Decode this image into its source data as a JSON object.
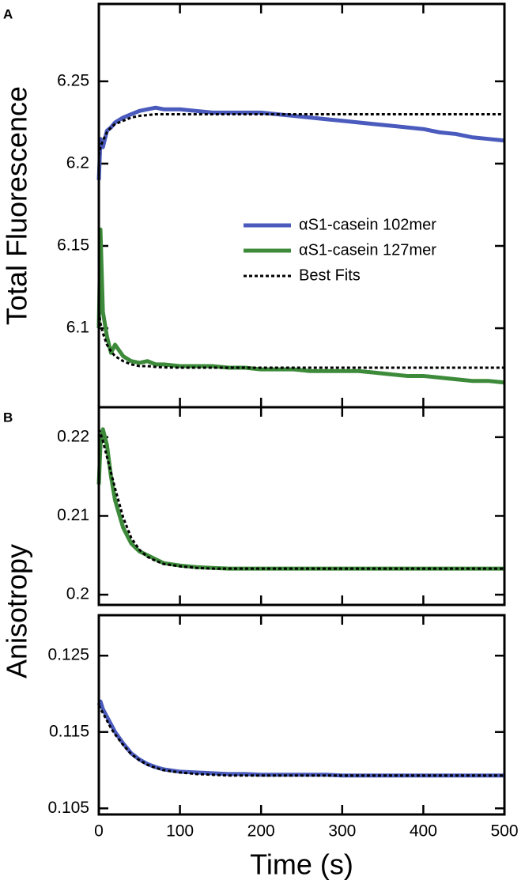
{
  "chart_data": [
    {
      "type": "line",
      "panel_label": "A",
      "ylabel": "Total Fluorescence",
      "x": [
        0,
        2,
        5,
        10,
        15,
        20,
        30,
        40,
        50,
        60,
        70,
        80,
        100,
        120,
        140,
        160,
        180,
        200,
        220,
        240,
        260,
        280,
        300,
        320,
        340,
        360,
        380,
        400,
        420,
        440,
        460,
        480,
        500
      ],
      "xlim": [
        0,
        500
      ],
      "xticks": [
        0,
        100,
        200,
        300,
        400,
        500
      ],
      "ylim": [
        6.052,
        6.297
      ],
      "yticks": [
        6.1,
        6.15,
        6.2,
        6.25
      ],
      "legend": true,
      "series": [
        {
          "name": "αS1-casein 102mer",
          "color": "#4a5bbd",
          "values": [
            6.19,
            6.215,
            6.21,
            6.22,
            6.222,
            6.225,
            6.228,
            6.23,
            6.232,
            6.233,
            6.234,
            6.233,
            6.233,
            6.232,
            6.231,
            6.231,
            6.231,
            6.231,
            6.23,
            6.229,
            6.228,
            6.227,
            6.226,
            6.225,
            6.224,
            6.223,
            6.222,
            6.221,
            6.219,
            6.218,
            6.216,
            6.215,
            6.214
          ]
        },
        {
          "name": "αS1-casein 127mer",
          "color": "#3d8b3a",
          "values": [
            6.1,
            6.16,
            6.11,
            6.095,
            6.085,
            6.09,
            6.083,
            6.08,
            6.079,
            6.08,
            6.078,
            6.078,
            6.077,
            6.077,
            6.077,
            6.076,
            6.076,
            6.075,
            6.075,
            6.075,
            6.074,
            6.074,
            6.074,
            6.074,
            6.073,
            6.072,
            6.071,
            6.071,
            6.07,
            6.069,
            6.068,
            6.068,
            6.067
          ]
        },
        {
          "name": "Best Fits",
          "color": "#000000",
          "dashed": true,
          "values": [
            6.205,
            6.21,
            6.214,
            6.219,
            6.222,
            6.224,
            6.226,
            6.228,
            6.229,
            6.2295,
            6.23,
            6.23,
            6.23,
            6.23,
            6.23,
            6.23,
            6.23,
            6.23,
            6.23,
            6.23,
            6.23,
            6.23,
            6.23,
            6.23,
            6.23,
            6.23,
            6.23,
            6.23,
            6.23,
            6.23,
            6.23,
            6.23,
            6.23
          ]
        },
        {
          "color": "#000000",
          "dashed": true,
          "values": [
            6.11,
            6.103,
            6.097,
            6.09,
            6.086,
            6.083,
            6.08,
            6.078,
            6.077,
            6.077,
            6.0765,
            6.0762,
            6.076,
            6.076,
            6.076,
            6.076,
            6.076,
            6.076,
            6.076,
            6.076,
            6.076,
            6.076,
            6.076,
            6.076,
            6.076,
            6.076,
            6.076,
            6.076,
            6.076,
            6.076,
            6.076,
            6.076,
            6.076
          ]
        }
      ]
    },
    {
      "type": "line",
      "panel_label": "B",
      "ylabel": "Anisotropy",
      "x": [
        0,
        2,
        5,
        10,
        15,
        20,
        30,
        40,
        50,
        60,
        70,
        80,
        100,
        120,
        140,
        160,
        180,
        200,
        220,
        240,
        260,
        280,
        300,
        320,
        340,
        360,
        380,
        400,
        420,
        440,
        460,
        480,
        500
      ],
      "xlim": [
        0,
        500
      ],
      "xticks": [
        0,
        100,
        200,
        300,
        400,
        500
      ],
      "ylim": [
        0.1987,
        0.2238
      ],
      "yticks": [
        0.2,
        0.21,
        0.22
      ],
      "series": [
        {
          "color": "#3d8b3a",
          "values": [
            0.214,
            0.219,
            0.221,
            0.219,
            0.215,
            0.212,
            0.2085,
            0.2065,
            0.2055,
            0.205,
            0.2045,
            0.204,
            0.2037,
            0.2035,
            0.2034,
            0.2033,
            0.2033,
            0.2033,
            0.2033,
            0.2033,
            0.2033,
            0.2033,
            0.2033,
            0.2033,
            0.2033,
            0.2033,
            0.2033,
            0.2033,
            0.2033,
            0.2033,
            0.2033,
            0.2033,
            0.2033
          ]
        },
        {
          "color": "#000000",
          "dashed": true,
          "values": [
            0.221,
            0.2205,
            0.2195,
            0.2175,
            0.2155,
            0.2135,
            0.2098,
            0.2072,
            0.2057,
            0.2048,
            0.2043,
            0.2039,
            0.2036,
            0.2034,
            0.2033,
            0.2033,
            0.2033,
            0.2033,
            0.2033,
            0.2033,
            0.2033,
            0.2033,
            0.2033,
            0.2033,
            0.2033,
            0.2033,
            0.2033,
            0.2033,
            0.2033,
            0.2033,
            0.2033,
            0.2033,
            0.2033
          ]
        }
      ]
    },
    {
      "type": "line",
      "xlabel": "Time (s)",
      "show_xtick_labels": true,
      "x": [
        0,
        2,
        5,
        10,
        15,
        20,
        30,
        40,
        50,
        60,
        70,
        80,
        100,
        120,
        140,
        160,
        180,
        200,
        220,
        240,
        260,
        280,
        300,
        320,
        340,
        360,
        380,
        400,
        420,
        440,
        460,
        480,
        500
      ],
      "xlim": [
        0,
        500
      ],
      "xticks": [
        0,
        100,
        200,
        300,
        400,
        500
      ],
      "ylim": [
        0.1042,
        0.1303
      ],
      "yticks": [
        0.105,
        0.115,
        0.125
      ],
      "series": [
        {
          "color": "#4a5bbd",
          "values": [
            0.1185,
            0.119,
            0.118,
            0.117,
            0.116,
            0.115,
            0.1135,
            0.1122,
            0.1114,
            0.1108,
            0.1104,
            0.1101,
            0.1098,
            0.1097,
            0.1096,
            0.1095,
            0.1095,
            0.1094,
            0.1094,
            0.1094,
            0.1094,
            0.1094,
            0.1093,
            0.1093,
            0.1093,
            0.1093,
            0.1093,
            0.1093,
            0.1093,
            0.1093,
            0.1093,
            0.1093,
            0.1093
          ]
        },
        {
          "color": "#000000",
          "dashed": true,
          "values": [
            0.1185,
            0.118,
            0.1175,
            0.1165,
            0.1155,
            0.1147,
            0.1133,
            0.1121,
            0.1113,
            0.1107,
            0.1103,
            0.11,
            0.1097,
            0.1095,
            0.1094,
            0.1093,
            0.1093,
            0.1093,
            0.1093,
            0.1093,
            0.1093,
            0.1093,
            0.1093,
            0.1093,
            0.1093,
            0.1093,
            0.1093,
            0.1093,
            0.1093,
            0.1093,
            0.1093,
            0.1093,
            0.1093
          ]
        }
      ]
    }
  ]
}
